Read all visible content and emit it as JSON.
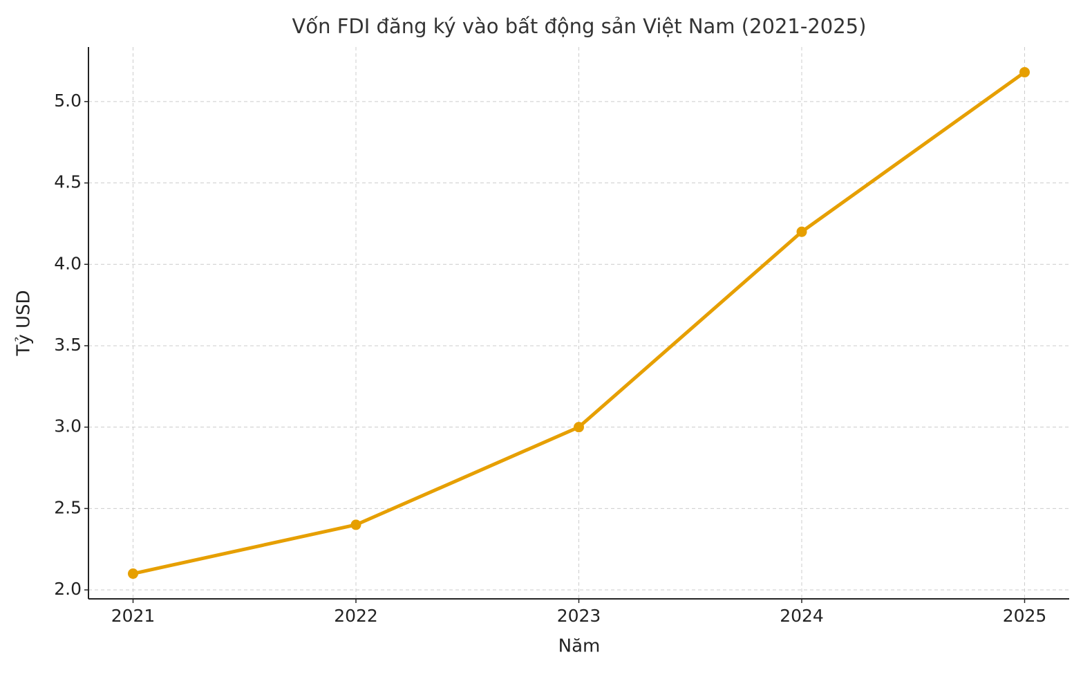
{
  "chart_data": {
    "type": "line",
    "title": "Vốn FDI đăng ký vào bất động sản Việt Nam (2021-2025)",
    "x_label": "Năm",
    "y_label": "Tỷ USD",
    "x": [
      2021,
      2022,
      2023,
      2024,
      2025
    ],
    "series": [
      {
        "color": "#e69f00",
        "values": [
          2.1,
          2.4,
          3.0,
          4.2,
          5.18
        ]
      }
    ],
    "xlim": [
      2020.8,
      2025.2
    ],
    "xticks": [
      2021,
      2022,
      2023,
      2024,
      2025
    ],
    "ylim": [
      1.945,
      5.335
    ],
    "yticks": [
      {
        "value": 2,
        "label": "2.0"
      },
      {
        "value": 2.5,
        "label": "2.5"
      },
      {
        "value": 3,
        "label": "3.0"
      },
      {
        "value": 3.5,
        "label": "3.5"
      },
      {
        "value": 4,
        "label": "4.0"
      },
      {
        "value": 4.5,
        "label": "4.5"
      },
      {
        "value": 5,
        "label": "5.0"
      }
    ],
    "grid": true
  }
}
